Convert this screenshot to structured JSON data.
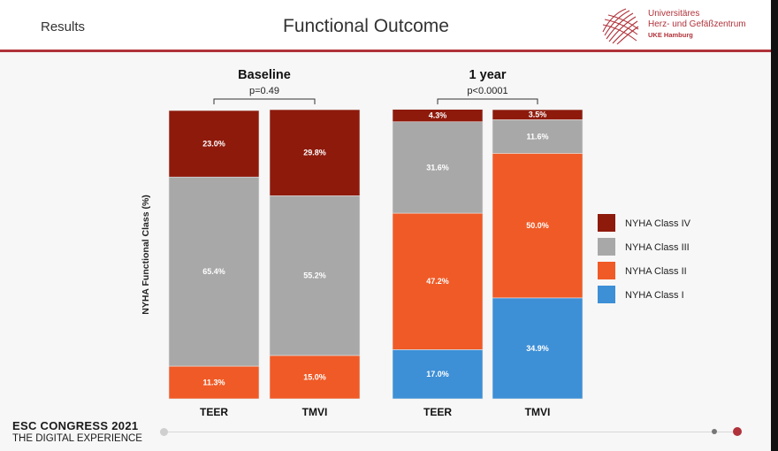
{
  "header": {
    "section": "Results",
    "title": "Functional Outcome",
    "institution": [
      "Universitäres",
      "Herz- und Gefäßzentrum",
      "UKE Hamburg"
    ]
  },
  "footer": {
    "line1": "ESC CONGRESS 2021",
    "line2": "THE DIGITAL EXPERIENCE"
  },
  "colors": {
    "NYHA Class IV": "#8e1a0c",
    "NYHA Class III": "#a8a8a8",
    "NYHA Class II": "#f05a26",
    "NYHA Class I": "#3d8fd6",
    "accent": "#b0323a"
  },
  "chart_data": {
    "type": "bar",
    "stacked": true,
    "ylabel": "NYHA Functional Class (%)",
    "ylim": [
      0,
      100
    ],
    "legend_position": "right",
    "groups": [
      {
        "name": "Baseline",
        "pvalue": "p=0.49",
        "categories": [
          "TEER",
          "TMVI"
        ]
      },
      {
        "name": "1 year",
        "pvalue": "p<0.0001",
        "categories": [
          "TEER",
          "TMVI"
        ]
      }
    ],
    "bars": [
      {
        "group": "Baseline",
        "category": "TEER",
        "values": {
          "NYHA Class I": 0,
          "NYHA Class II": 11.3,
          "NYHA Class III": 65.4,
          "NYHA Class IV": 23.0
        },
        "labels": {
          "NYHA Class II": "11.3%",
          "NYHA Class III": "65.4%",
          "NYHA Class IV": "23.0%"
        }
      },
      {
        "group": "Baseline",
        "category": "TMVI",
        "values": {
          "NYHA Class I": 0,
          "NYHA Class II": 15.0,
          "NYHA Class III": 55.2,
          "NYHA Class IV": 29.8
        },
        "labels": {
          "NYHA Class II": "15.0%",
          "NYHA Class III": "55.2%",
          "NYHA Class IV": "29.8%"
        }
      },
      {
        "group": "1 year",
        "category": "TEER",
        "values": {
          "NYHA Class I": 17.0,
          "NYHA Class II": 47.2,
          "NYHA Class III": 31.6,
          "NYHA Class IV": 4.3
        },
        "labels": {
          "NYHA Class I": "17.0%",
          "NYHA Class II": "47.2%",
          "NYHA Class III": "31.6%",
          "NYHA Class IV": "4.3%"
        }
      },
      {
        "group": "1 year",
        "category": "TMVI",
        "values": {
          "NYHA Class I": 34.9,
          "NYHA Class II": 50.0,
          "NYHA Class III": 11.6,
          "NYHA Class IV": 3.5
        },
        "labels": {
          "NYHA Class I": "34.9%",
          "NYHA Class II": "50.0%",
          "NYHA Class III": "11.6%",
          "NYHA Class IV": "3.5%"
        }
      }
    ],
    "series_order": [
      "NYHA Class I",
      "NYHA Class II",
      "NYHA Class III",
      "NYHA Class IV"
    ],
    "legend": [
      "NYHA Class IV",
      "NYHA Class III",
      "NYHA Class II",
      "NYHA Class I"
    ]
  }
}
